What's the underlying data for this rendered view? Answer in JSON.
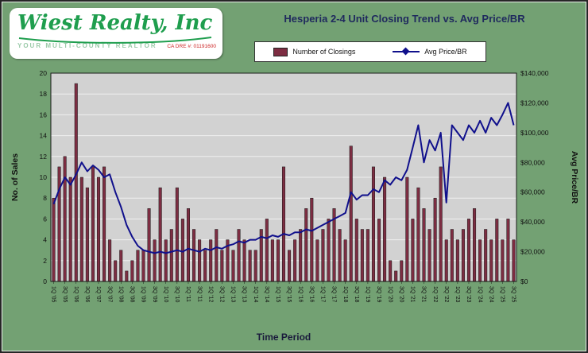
{
  "logo": {
    "name": "Wiest Realty, Inc",
    "tagline": "YOUR MULTI-COUNTY REALTOR",
    "license": "CA DRE #: 01191600"
  },
  "title": "Hesperia  2-4 Unit Closing Trend vs. Avg Price/BR",
  "chart_data": {
    "type": "bar+line",
    "title": "Hesperia  2-4 Unit Closing Trend vs. Avg Price/BR",
    "xlabel": "Time Period",
    "ylabel_left": "No. of Sales",
    "ylabel_right": "Avg Price/BR",
    "ylim_left": [
      0,
      20
    ],
    "ytick_step_left": 2,
    "ylim_right": [
      0,
      140000
    ],
    "ytick_step_right": 20000,
    "x_tick_every": 2,
    "grid": true,
    "legend_position": "top",
    "colors": {
      "bar": "#7d2d42",
      "line": "#10108c",
      "plot_bg": "#d2d2d2",
      "grid": "#efefef",
      "background": "#73a173",
      "title": "#202a5e"
    },
    "categories": [
      "1Q '05",
      "2Q '05",
      "3Q '05",
      "4Q '05",
      "1Q '06",
      "2Q '06",
      "3Q '06",
      "4Q '06",
      "1Q '07",
      "2Q '07",
      "3Q '07",
      "4Q '07",
      "1Q '08",
      "2Q '08",
      "3Q '08",
      "4Q '08",
      "1Q '09",
      "2Q '09",
      "3Q '09",
      "4Q '09",
      "1Q '10",
      "2Q '10",
      "3Q '10",
      "4Q '10",
      "1Q '11",
      "2Q '11",
      "3Q '11",
      "4Q '11",
      "1Q '12",
      "2Q '12",
      "3Q '12",
      "4Q '12",
      "1Q '13",
      "2Q '13",
      "3Q '13",
      "4Q '13",
      "1Q '14",
      "2Q '14",
      "3Q '14",
      "4Q '14",
      "1Q '15",
      "2Q '15",
      "3Q '15",
      "4Q '15",
      "1Q '16",
      "2Q '16",
      "3Q '16",
      "4Q '16",
      "1Q '17",
      "2Q '17",
      "3Q '17",
      "4Q '17",
      "1Q '18",
      "2Q '18",
      "3Q '18",
      "4Q '18",
      "1Q '19",
      "2Q '19",
      "3Q '19",
      "4Q '19",
      "1Q '20",
      "2Q '20",
      "3Q '20",
      "4Q '20",
      "1Q '21",
      "2Q '21",
      "3Q '21",
      "4Q '21",
      "1Q '22",
      "2Q '22",
      "3Q '22",
      "4Q '22",
      "1Q '23",
      "2Q '23",
      "3Q '23",
      "4Q '23",
      "1Q '24",
      "2Q '24",
      "3Q '24",
      "4Q '24",
      "1Q '25",
      "2Q '25",
      "3Q '25"
    ],
    "series": [
      {
        "name": "Number of Closings",
        "type": "bar",
        "axis": "left",
        "values": [
          8,
          11,
          12,
          10,
          19,
          10,
          9,
          11,
          10,
          11,
          4,
          2,
          3,
          1,
          2,
          3,
          3,
          7,
          4,
          9,
          4,
          5,
          9,
          6,
          7,
          5,
          4,
          3,
          4,
          5,
          3,
          4,
          3,
          5,
          4,
          3,
          3,
          5,
          6,
          4,
          4,
          11,
          3,
          4,
          5,
          7,
          8,
          4,
          5,
          6,
          7,
          5,
          4,
          13,
          6,
          5,
          5,
          11,
          6,
          10,
          2,
          1,
          2,
          10,
          6,
          9,
          7,
          5,
          8,
          11,
          4,
          5,
          4,
          5,
          6,
          7,
          4,
          5,
          4,
          6,
          4,
          6,
          4
        ]
      },
      {
        "name": "Avg Price/BR",
        "type": "line",
        "axis": "right",
        "values": [
          52000,
          62000,
          70000,
          65000,
          72000,
          80000,
          74000,
          78000,
          75000,
          70000,
          72000,
          60000,
          50000,
          38000,
          30000,
          24000,
          21000,
          20000,
          19000,
          20000,
          19000,
          20000,
          21000,
          20000,
          22000,
          21000,
          20000,
          22000,
          21000,
          23000,
          22000,
          24000,
          25000,
          27000,
          26000,
          28000,
          28000,
          30000,
          29000,
          31000,
          30000,
          32000,
          31000,
          33000,
          33000,
          35000,
          34000,
          36000,
          38000,
          40000,
          42000,
          44000,
          46000,
          60000,
          55000,
          58000,
          58000,
          62000,
          60000,
          68000,
          65000,
          70000,
          68000,
          75000,
          90000,
          105000,
          80000,
          95000,
          88000,
          100000,
          53000,
          105000,
          100000,
          95000,
          105000,
          100000,
          108000,
          100000,
          110000,
          105000,
          112000,
          120000,
          105000
        ]
      }
    ]
  }
}
